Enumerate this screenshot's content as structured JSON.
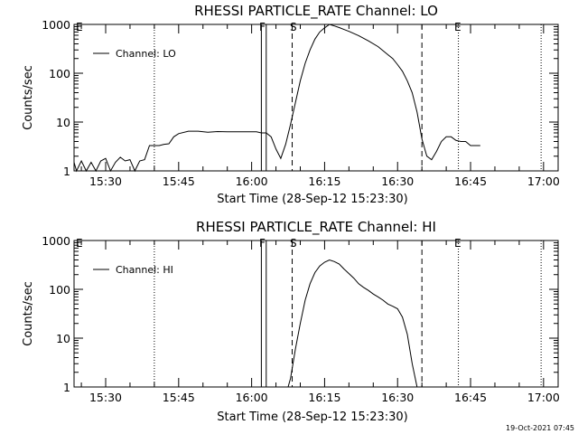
{
  "chart_data": [
    {
      "type": "line",
      "title": "RHESSI PARTICLE_RATE Channel: LO",
      "xlabel": "Start Time (28-Sep-12 15:23:30)",
      "ylabel": "Counts/sec",
      "yscale": "log",
      "ylim": [
        1,
        1000
      ],
      "xlim": [
        "15:23:30",
        "17:03:00"
      ],
      "x_ticks": [
        "15:30",
        "15:45",
        "16:00",
        "16:15",
        "16:30",
        "16:45",
        "17:00"
      ],
      "y_ticks": [
        "1",
        "10",
        "100",
        "1000"
      ],
      "legend": "Channel: LO",
      "legend_position": "top-left",
      "series": [
        {
          "name": "Channel: LO",
          "x": [
            "15:23:30",
            "15:24:00",
            "15:25:00",
            "15:26:00",
            "15:27:00",
            "15:28:00",
            "15:29:00",
            "15:30:00",
            "15:31:00",
            "15:32:00",
            "15:33:00",
            "15:34:00",
            "15:35:00",
            "15:36:00",
            "15:37:00",
            "15:38:00",
            "15:39:00",
            "15:40:00",
            "15:41:00",
            "15:42:00",
            "15:43:00",
            "15:44:00",
            "15:45:00",
            "15:47:00",
            "15:49:00",
            "15:51:00",
            "15:53:00",
            "15:55:00",
            "15:57:00",
            "15:59:00",
            "16:01:00",
            "16:02:00",
            "16:03:00",
            "16:04:00",
            "16:05:00",
            "16:06:00",
            "16:07:00",
            "16:08:00",
            "16:09:00",
            "16:10:00",
            "16:11:00",
            "16:12:00",
            "16:13:00",
            "16:14:00",
            "16:15:00",
            "16:16:00",
            "16:17:00",
            "16:18:00",
            "16:20:00",
            "16:22:00",
            "16:24:00",
            "16:26:00",
            "16:28:00",
            "16:29:00",
            "16:30:00",
            "16:31:00",
            "16:32:00",
            "16:33:00",
            "16:34:00",
            "16:35:00",
            "16:36:00",
            "16:37:00",
            "16:38:00",
            "16:39:00",
            "16:40:00",
            "16:41:00",
            "16:42:00",
            "16:43:00",
            "16:44:00",
            "16:45:00",
            "16:46:00",
            "16:47:00"
          ],
          "y": [
            1.5,
            1.0,
            1.6,
            1.0,
            1.5,
            1.0,
            1.6,
            1.8,
            1.0,
            1.5,
            1.9,
            1.6,
            1.7,
            1.0,
            1.6,
            1.7,
            3.3,
            3.3,
            3.3,
            3.5,
            3.6,
            5.0,
            5.8,
            6.5,
            6.5,
            6.2,
            6.4,
            6.3,
            6.3,
            6.3,
            6.3,
            6.0,
            6.0,
            5.0,
            2.8,
            1.8,
            3.5,
            9.0,
            25,
            70,
            160,
            300,
            500,
            700,
            850,
            1000,
            930,
            860,
            720,
            590,
            460,
            350,
            240,
            200,
            150,
            110,
            70,
            40,
            16,
            4.5,
            2.0,
            1.7,
            2.5,
            4.0,
            5.0,
            5.0,
            4.2,
            4.0,
            4.0,
            3.3,
            3.3,
            3.3
          ]
        }
      ]
    },
    {
      "type": "line",
      "title": "RHESSI PARTICLE_RATE Channel: HI",
      "xlabel": "Start Time (28-Sep-12 15:23:30)",
      "ylabel": "Counts/sec",
      "yscale": "log",
      "ylim": [
        1,
        1000
      ],
      "xlim": [
        "15:23:30",
        "17:03:00"
      ],
      "x_ticks": [
        "15:30",
        "15:45",
        "16:00",
        "16:15",
        "16:30",
        "16:45",
        "17:00"
      ],
      "y_ticks": [
        "1",
        "10",
        "100",
        "1000"
      ],
      "legend": "Channel: HI",
      "legend_position": "top-left",
      "series": [
        {
          "name": "Channel: HI",
          "x": [
            "16:07:30",
            "16:08:00",
            "16:09:00",
            "16:10:00",
            "16:11:00",
            "16:12:00",
            "16:13:00",
            "16:14:00",
            "16:15:00",
            "16:16:00",
            "16:17:00",
            "16:18:00",
            "16:19:00",
            "16:20:00",
            "16:21:00",
            "16:22:00",
            "16:23:00",
            "16:24:00",
            "16:25:00",
            "16:26:00",
            "16:27:00",
            "16:28:00",
            "16:29:00",
            "16:30:00",
            "16:31:00",
            "16:32:00",
            "16:33:00",
            "16:34:00"
          ],
          "y": [
            1.0,
            1.5,
            6,
            20,
            60,
            130,
            220,
            300,
            360,
            400,
            370,
            330,
            260,
            210,
            170,
            130,
            110,
            95,
            80,
            70,
            60,
            50,
            45,
            40,
            27,
            12,
            3,
            1.0
          ]
        }
      ]
    }
  ],
  "markers": {
    "f": "F",
    "s": "S",
    "e": "E"
  },
  "footer": {
    "timestamp": "19-Oct-2021 07:45"
  }
}
